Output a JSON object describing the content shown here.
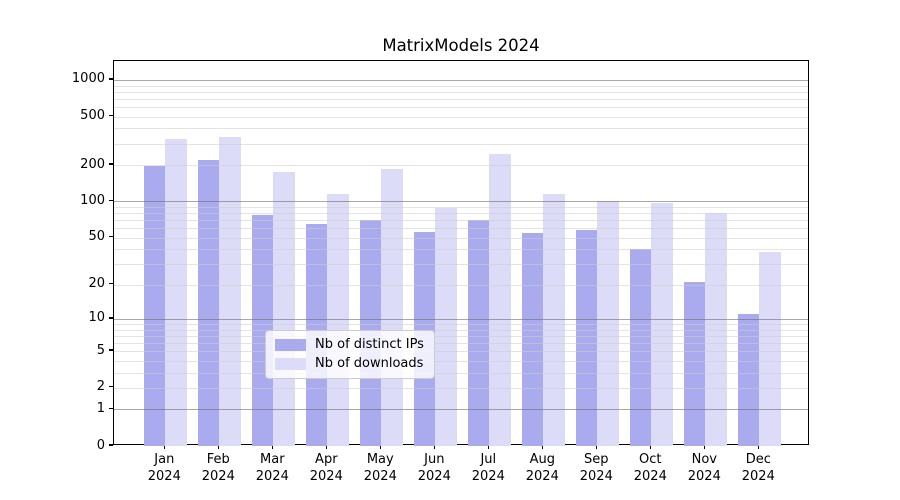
{
  "title": "MatrixModels 2024",
  "chart_data": {
    "type": "bar",
    "title": "MatrixModels 2024",
    "xlabel": "",
    "ylabel": "",
    "yscale": "log1p",
    "ylim": [
      0,
      1430
    ],
    "grid": "on",
    "legend_position": "lower center",
    "yticks": [
      0,
      1,
      2,
      5,
      10,
      20,
      50,
      100,
      200,
      500,
      1000
    ],
    "major_grid_values": [
      1,
      10,
      100,
      1000
    ],
    "minor_grid_values": [
      2,
      3,
      4,
      5,
      6,
      7,
      8,
      9,
      20,
      30,
      40,
      50,
      60,
      70,
      80,
      90,
      200,
      300,
      400,
      500,
      600,
      700,
      800,
      900
    ],
    "categories": [
      "Jan 2024",
      "Feb 2024",
      "Mar 2024",
      "Apr 2024",
      "May 2024",
      "Jun 2024",
      "Jul 2024",
      "Aug 2024",
      "Sep 2024",
      "Oct 2024",
      "Nov 2024",
      "Dec 2024"
    ],
    "series": [
      {
        "name": "Nb of distinct IPs",
        "color": "#aaaaee",
        "values": [
          195,
          222,
          77,
          65,
          70,
          56,
          70,
          55,
          58,
          40,
          21,
          11
        ]
      },
      {
        "name": "Nb of downloads",
        "color": "#dcdcf9",
        "values": [
          330,
          340,
          175,
          115,
          185,
          89,
          247,
          115,
          101,
          97,
          81,
          38
        ]
      }
    ],
    "colors": {
      "spine": "#000000",
      "major_grid": "#6e6e6e",
      "minor_grid": "#cdcdcd",
      "background": "#ffffff",
      "legend_border": "#cccccc"
    }
  }
}
